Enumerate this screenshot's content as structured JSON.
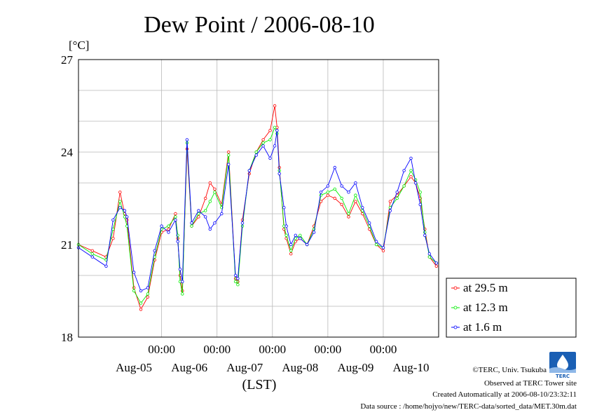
{
  "chart_data": {
    "type": "line",
    "title": "Dew Point / 2006-08-10",
    "ylabel": "[°C]",
    "xlabel": "(LST)",
    "ylim": [
      18,
      27
    ],
    "xlim": [
      "2006-08-04T12:00",
      "2006-08-10T23:59"
    ],
    "yticks": [
      18,
      21,
      24,
      27
    ],
    "xtick_time_labels": [
      "00:00",
      "00:00",
      "00:00",
      "00:00",
      "00:00"
    ],
    "xtick_time_positions": [
      "2006-08-06T00:00",
      "2006-08-07T00:00",
      "2006-08-08T00:00",
      "2006-08-09T00:00",
      "2006-08-10T00:00"
    ],
    "xtick_day_labels": [
      "Aug-05",
      "Aug-06",
      "Aug-07",
      "Aug-08",
      "Aug-09",
      "Aug-10"
    ],
    "xtick_day_positions": [
      "2006-08-05T12:00",
      "2006-08-06T12:00",
      "2006-08-07T12:00",
      "2006-08-08T12:00",
      "2006-08-09T12:00",
      "2006-08-10T12:00"
    ],
    "grid": true,
    "legend_position": "lower-right, outside plot",
    "series": [
      {
        "name": "at 29.5 m",
        "color": "#ff0000",
        "x": [
          "2006-08-04T12:00",
          "2006-08-04T18:00",
          "2006-08-05T00:00",
          "2006-08-05T03:00",
          "2006-08-05T06:00",
          "2006-08-05T08:00",
          "2006-08-05T09:00",
          "2006-08-05T12:00",
          "2006-08-05T15:00",
          "2006-08-05T18:00",
          "2006-08-05T21:00",
          "2006-08-06T00:00",
          "2006-08-06T03:00",
          "2006-08-06T06:00",
          "2006-08-06T07:00",
          "2006-08-06T08:00",
          "2006-08-06T09:00",
          "2006-08-06T11:00",
          "2006-08-06T13:00",
          "2006-08-06T16:00",
          "2006-08-06T19:00",
          "2006-08-06T21:00",
          "2006-08-06T23:00",
          "2006-08-07T02:00",
          "2006-08-07T05:00",
          "2006-08-07T08:00",
          "2006-08-07T09:00",
          "2006-08-07T11:00",
          "2006-08-07T14:00",
          "2006-08-07T17:00",
          "2006-08-07T20:00",
          "2006-08-07T23:00",
          "2006-08-08T01:00",
          "2006-08-08T02:00",
          "2006-08-08T03:00",
          "2006-08-08T05:00",
          "2006-08-08T06:00",
          "2006-08-08T08:00",
          "2006-08-08T10:00",
          "2006-08-08T12:00",
          "2006-08-08T15:00",
          "2006-08-08T18:00",
          "2006-08-08T21:00",
          "2006-08-09T00:00",
          "2006-08-09T03:00",
          "2006-08-09T06:00",
          "2006-08-09T09:00",
          "2006-08-09T12:00",
          "2006-08-09T15:00",
          "2006-08-09T18:00",
          "2006-08-09T21:00",
          "2006-08-10T00:00",
          "2006-08-10T03:00",
          "2006-08-10T06:00",
          "2006-08-10T09:00",
          "2006-08-10T12:00",
          "2006-08-10T14:00",
          "2006-08-10T16:00",
          "2006-08-10T18:00",
          "2006-08-10T20:00",
          "2006-08-10T23:00"
        ],
        "y": [
          21.0,
          20.8,
          20.6,
          21.2,
          22.7,
          22.0,
          21.8,
          19.6,
          18.9,
          19.3,
          20.5,
          21.4,
          21.5,
          22.0,
          21.2,
          20.0,
          19.5,
          24.1,
          21.6,
          21.9,
          22.5,
          23.0,
          22.8,
          22.3,
          24.0,
          19.9,
          19.8,
          21.8,
          23.3,
          24.0,
          24.4,
          24.7,
          25.5,
          24.8,
          23.5,
          21.5,
          21.2,
          20.7,
          21.1,
          21.2,
          21.0,
          21.6,
          22.4,
          22.6,
          22.5,
          22.3,
          21.9,
          22.4,
          22.0,
          21.5,
          21.0,
          20.8,
          22.4,
          22.6,
          22.9,
          23.2,
          23.0,
          22.5,
          21.5,
          20.6,
          20.3
        ]
      },
      {
        "name": "at 12.3 m",
        "color": "#00ee00",
        "x": [
          "2006-08-04T12:00",
          "2006-08-04T18:00",
          "2006-08-05T00:00",
          "2006-08-05T03:00",
          "2006-08-05T06:00",
          "2006-08-05T08:00",
          "2006-08-05T09:00",
          "2006-08-05T12:00",
          "2006-08-05T15:00",
          "2006-08-05T18:00",
          "2006-08-05T21:00",
          "2006-08-06T00:00",
          "2006-08-06T03:00",
          "2006-08-06T06:00",
          "2006-08-06T07:00",
          "2006-08-06T08:00",
          "2006-08-06T09:00",
          "2006-08-06T11:00",
          "2006-08-06T13:00",
          "2006-08-06T16:00",
          "2006-08-06T19:00",
          "2006-08-06T21:00",
          "2006-08-06T23:00",
          "2006-08-07T02:00",
          "2006-08-07T05:00",
          "2006-08-07T08:00",
          "2006-08-07T09:00",
          "2006-08-07T11:00",
          "2006-08-07T14:00",
          "2006-08-07T17:00",
          "2006-08-07T20:00",
          "2006-08-07T23:00",
          "2006-08-08T01:00",
          "2006-08-08T02:00",
          "2006-08-08T03:00",
          "2006-08-08T05:00",
          "2006-08-08T06:00",
          "2006-08-08T08:00",
          "2006-08-08T10:00",
          "2006-08-08T12:00",
          "2006-08-08T15:00",
          "2006-08-08T18:00",
          "2006-08-08T21:00",
          "2006-08-09T00:00",
          "2006-08-09T03:00",
          "2006-08-09T06:00",
          "2006-08-09T09:00",
          "2006-08-09T12:00",
          "2006-08-09T15:00",
          "2006-08-09T18:00",
          "2006-08-09T21:00",
          "2006-08-10T00:00",
          "2006-08-10T03:00",
          "2006-08-10T06:00",
          "2006-08-10T09:00",
          "2006-08-10T12:00",
          "2006-08-10T14:00",
          "2006-08-10T16:00",
          "2006-08-10T18:00",
          "2006-08-10T20:00",
          "2006-08-10T23:00"
        ],
        "y": [
          21.0,
          20.7,
          20.5,
          21.5,
          22.4,
          21.9,
          21.6,
          19.5,
          19.1,
          19.4,
          20.6,
          21.5,
          21.6,
          21.9,
          21.3,
          19.8,
          19.4,
          24.3,
          21.6,
          22.0,
          22.1,
          22.4,
          22.7,
          22.2,
          23.9,
          19.8,
          19.7,
          21.6,
          23.4,
          24.0,
          24.3,
          24.4,
          24.8,
          24.6,
          23.4,
          21.6,
          21.3,
          20.8,
          21.2,
          21.3,
          21.0,
          21.5,
          22.6,
          22.7,
          22.8,
          22.5,
          22.0,
          22.6,
          22.1,
          21.6,
          21.0,
          20.9,
          22.2,
          22.5,
          22.9,
          23.4,
          23.1,
          22.7,
          21.4,
          20.6,
          20.4
        ]
      },
      {
        "name": "at 1.6 m",
        "color": "#0000ff",
        "x": [
          "2006-08-04T12:00",
          "2006-08-04T18:00",
          "2006-08-05T00:00",
          "2006-08-05T03:00",
          "2006-08-05T06:00",
          "2006-08-05T08:00",
          "2006-08-05T09:00",
          "2006-08-05T12:00",
          "2006-08-05T15:00",
          "2006-08-05T18:00",
          "2006-08-05T21:00",
          "2006-08-06T00:00",
          "2006-08-06T03:00",
          "2006-08-06T06:00",
          "2006-08-06T07:00",
          "2006-08-06T08:00",
          "2006-08-06T09:00",
          "2006-08-06T11:00",
          "2006-08-06T13:00",
          "2006-08-06T16:00",
          "2006-08-06T19:00",
          "2006-08-06T21:00",
          "2006-08-06T23:00",
          "2006-08-07T02:00",
          "2006-08-07T05:00",
          "2006-08-07T08:00",
          "2006-08-07T09:00",
          "2006-08-07T11:00",
          "2006-08-07T14:00",
          "2006-08-07T17:00",
          "2006-08-07T20:00",
          "2006-08-07T23:00",
          "2006-08-08T01:00",
          "2006-08-08T02:00",
          "2006-08-08T03:00",
          "2006-08-08T05:00",
          "2006-08-08T06:00",
          "2006-08-08T08:00",
          "2006-08-08T10:00",
          "2006-08-08T12:00",
          "2006-08-08T15:00",
          "2006-08-08T18:00",
          "2006-08-08T21:00",
          "2006-08-09T00:00",
          "2006-08-09T03:00",
          "2006-08-09T06:00",
          "2006-08-09T09:00",
          "2006-08-09T12:00",
          "2006-08-09T15:00",
          "2006-08-09T18:00",
          "2006-08-09T21:00",
          "2006-08-10T00:00",
          "2006-08-10T03:00",
          "2006-08-10T06:00",
          "2006-08-10T09:00",
          "2006-08-10T12:00",
          "2006-08-10T14:00",
          "2006-08-10T16:00",
          "2006-08-10T18:00",
          "2006-08-10T20:00",
          "2006-08-10T23:00"
        ],
        "y": [
          20.9,
          20.6,
          20.3,
          21.8,
          22.2,
          22.1,
          21.9,
          20.1,
          19.5,
          19.6,
          20.8,
          21.6,
          21.4,
          21.8,
          21.1,
          20.2,
          19.8,
          24.4,
          21.7,
          22.1,
          21.9,
          21.5,
          21.7,
          22.0,
          23.6,
          20.0,
          19.9,
          21.7,
          23.4,
          23.9,
          24.2,
          23.8,
          24.2,
          24.7,
          23.3,
          22.2,
          21.6,
          21.0,
          21.3,
          21.2,
          21.0,
          21.4,
          22.7,
          22.9,
          23.5,
          22.9,
          22.7,
          23.0,
          22.2,
          21.7,
          21.1,
          20.9,
          22.1,
          22.7,
          23.4,
          23.8,
          23.0,
          22.3,
          21.3,
          20.7,
          20.4
        ]
      }
    ]
  },
  "footer": {
    "copyright": "©TERC, Univ. Tsukuba",
    "observed": "Observed at TERC Tower site",
    "created": "Created Automatically at 2006-08-10/23:32:11",
    "source": "Data source : /home/hojyo/new/TERC-data/sorted_data/MET.30m.dat",
    "logo_text": "TERC"
  }
}
